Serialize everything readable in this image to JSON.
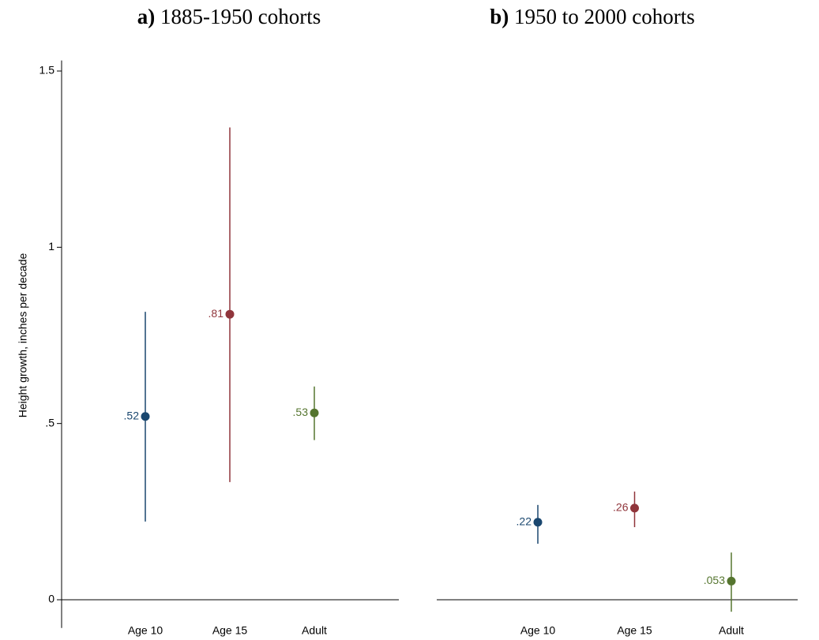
{
  "chart_data": [
    {
      "type": "errorbar",
      "title_label": "a)",
      "title": "1885-1950 cohorts",
      "y_label": "Height growth, inches per decade",
      "categories": [
        "Age 10",
        "Age 15",
        "Adult"
      ],
      "colors": [
        "#1a476f",
        "#90353b",
        "#55752f"
      ],
      "values": [
        0.52,
        0.81,
        0.53
      ],
      "value_labels": [
        ".52",
        ".81",
        ".53"
      ],
      "lower": [
        0.222,
        0.334,
        0.453
      ],
      "upper": [
        0.817,
        1.34,
        0.605
      ],
      "ylim": [
        -0.08,
        1.53
      ],
      "yticks": [
        0,
        {
          "value": 0.5,
          "label": ".5"
        },
        1,
        1.5
      ]
    },
    {
      "type": "errorbar",
      "title_label": "b)",
      "title": "1950 to 2000 cohorts",
      "categories": [
        "Age 10",
        "Age 15",
        "Adult"
      ],
      "colors": [
        "#1a476f",
        "#90353b",
        "#55752f"
      ],
      "values": [
        0.22,
        0.26,
        0.053
      ],
      "value_labels": [
        ".22",
        ".26",
        ".053"
      ],
      "lower": [
        0.159,
        0.206,
        -0.034
      ],
      "upper": [
        0.269,
        0.307,
        0.134
      ],
      "ylim": [
        -0.08,
        1.53
      ]
    }
  ]
}
